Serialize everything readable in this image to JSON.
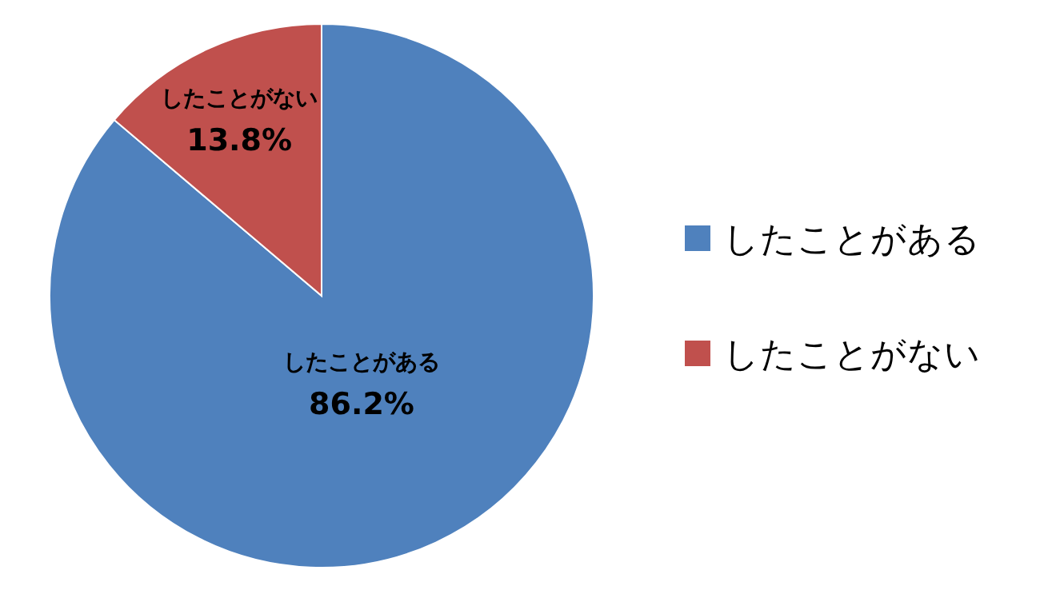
{
  "chart_data": {
    "type": "pie",
    "categories": [
      "したことがある",
      "したことがない"
    ],
    "values": [
      86.2,
      13.8
    ],
    "colors": [
      "#4f81bd",
      "#c0504d"
    ],
    "value_labels": [
      "86.2%",
      "13.8%"
    ],
    "legend": "right"
  }
}
